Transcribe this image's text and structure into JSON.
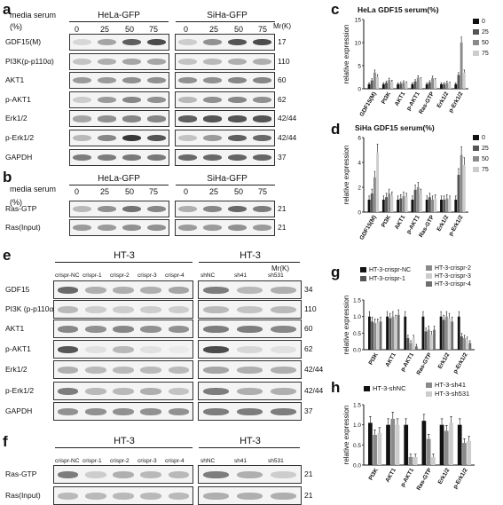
{
  "panel_letters": {
    "a": "a",
    "b": "b",
    "c": "c",
    "d": "d",
    "e": "e",
    "f": "f",
    "g": "g",
    "h": "h"
  },
  "common": {
    "media_serum": "media serum",
    "pct": "(%)",
    "mr": "Mr(K)"
  },
  "panel_a": {
    "groups": [
      "HeLa-GFP",
      "SiHa-GFP"
    ],
    "conc": [
      "0",
      "25",
      "50",
      "75"
    ],
    "rows": [
      {
        "label": "GDF15(M)",
        "mw": "17"
      },
      {
        "label": "PI3K(p-p110α)",
        "mw": "110"
      },
      {
        "label": "AKT1",
        "mw": "60"
      },
      {
        "label": "p-AKT1",
        "mw": "62"
      },
      {
        "label": "Erk1/2",
        "mw": "42/44"
      },
      {
        "label": "p-Erk1/2",
        "mw": "42/44"
      },
      {
        "label": "GAPDH",
        "mw": "37"
      }
    ]
  },
  "panel_b": {
    "groups": [
      "HeLa-GFP",
      "SiHa-GFP"
    ],
    "conc": [
      "0",
      "25",
      "50",
      "75"
    ],
    "rows": [
      {
        "label": "Ras-GTP",
        "mw": "21"
      },
      {
        "label": "Ras(Input)",
        "mw": "21"
      }
    ]
  },
  "panel_e": {
    "group_left": "HT-3",
    "group_right": "HT-3",
    "lanes_left": [
      "crispr-NC",
      "crispr-1",
      "crispr-2",
      "crispr-3",
      "crispr-4"
    ],
    "lanes_right": [
      "shNC",
      "sh41",
      "sh531"
    ],
    "rows": [
      {
        "label": "GDF15",
        "mw": "34"
      },
      {
        "label": "PI3K (p-p110α)",
        "mw": "110"
      },
      {
        "label": "AKT1",
        "mw": "60"
      },
      {
        "label": "p-AKT1",
        "mw": "62"
      },
      {
        "label": "Erk1/2",
        "mw": "42/44"
      },
      {
        "label": "p-Erk1/2",
        "mw": "42/44"
      },
      {
        "label": "GAPDH",
        "mw": "37"
      }
    ]
  },
  "panel_f": {
    "group_left": "HT-3",
    "group_right": "HT-3",
    "lanes_left": [
      "crispr-NC",
      "crispr-1",
      "crispr-2",
      "crispr-3",
      "crispr-4"
    ],
    "lanes_right": [
      "shNC",
      "sh41",
      "sh531"
    ],
    "rows": [
      {
        "label": "Ras-GTP",
        "mw": "21"
      },
      {
        "label": "Ras(Input)",
        "mw": "21"
      }
    ]
  },
  "chart_data": [
    {
      "id": "c",
      "type": "bar",
      "title": "HeLa  GDF15 serum(%)",
      "ylabel": "relative expression",
      "categories": [
        "GDF15(M)",
        "PI3K",
        "AKT1",
        "p-AKT1",
        "Ras-GTP",
        "Erk1/2",
        "p-Erk1/2"
      ],
      "ylim": [
        0,
        15
      ],
      "yticks": [
        0,
        5,
        10,
        15
      ],
      "legend": "right",
      "colors": [
        "#111111",
        "#555555",
        "#8a8a8a",
        "#cccccc"
      ],
      "series": [
        {
          "name": "0",
          "values": [
            1.0,
            1.0,
            1.0,
            1.0,
            1.0,
            1.0,
            1.0
          ]
        },
        {
          "name": "25",
          "values": [
            1.8,
            1.3,
            1.1,
            1.6,
            1.4,
            1.0,
            3.0
          ]
        },
        {
          "name": "50",
          "values": [
            3.5,
            1.9,
            1.4,
            2.4,
            2.3,
            1.3,
            10.0
          ]
        },
        {
          "name": "75",
          "values": [
            2.6,
            1.5,
            1.2,
            2.0,
            1.8,
            1.1,
            3.5
          ]
        }
      ]
    },
    {
      "id": "d",
      "type": "bar",
      "title": "SiHa  GDF15 serum(%)",
      "ylabel": "relative expression",
      "categories": [
        "GDF15(M)",
        "PI3K",
        "AKT1",
        "p-AKT1",
        "Ras-GTP",
        "Erk1/2",
        "p-Erk1/2"
      ],
      "ylim": [
        0,
        6
      ],
      "yticks": [
        0,
        2,
        4,
        6
      ],
      "legend": "right",
      "colors": [
        "#111111",
        "#555555",
        "#8a8a8a",
        "#cccccc"
      ],
      "series": [
        {
          "name": "0",
          "values": [
            1.0,
            1.0,
            1.0,
            1.0,
            1.0,
            1.0,
            1.0
          ]
        },
        {
          "name": "25",
          "values": [
            1.5,
            1.2,
            1.1,
            1.8,
            1.2,
            1.0,
            3.0
          ]
        },
        {
          "name": "50",
          "values": [
            2.8,
            1.5,
            1.3,
            2.0,
            1.0,
            1.1,
            4.6
          ]
        },
        {
          "name": "75",
          "values": [
            4.8,
            1.3,
            1.2,
            1.5,
            1.1,
            1.0,
            3.8
          ]
        }
      ]
    },
    {
      "id": "g",
      "type": "bar",
      "title": "",
      "ylabel": "relative expression",
      "categories": [
        "PI3K",
        "AKT1",
        "p-AKT1",
        "Ras-GTP",
        "Erk1/2",
        "p-Erk1/2"
      ],
      "ylim": [
        0,
        1.5
      ],
      "yticks": [
        0.0,
        0.5,
        1.0,
        1.5
      ],
      "legend": "top",
      "colors": [
        "#111111",
        "#555555",
        "#8a8a8a",
        "#cccccc",
        "#6e6e6e"
      ],
      "series": [
        {
          "name": "HT-3-crispr-NC",
          "values": [
            1.0,
            1.0,
            1.0,
            1.0,
            1.0,
            1.0
          ]
        },
        {
          "name": "HT-3-crispr-1",
          "values": [
            0.85,
            0.95,
            0.35,
            0.55,
            0.9,
            0.4
          ]
        },
        {
          "name": "HT-3-crispr-2",
          "values": [
            0.8,
            1.0,
            0.2,
            0.6,
            1.0,
            0.35
          ]
        },
        {
          "name": "HT-3-crispr-3",
          "values": [
            0.8,
            0.9,
            0.35,
            0.45,
            0.95,
            0.3
          ]
        },
        {
          "name": "HT-3-crispr-4",
          "values": [
            0.85,
            1.05,
            0.1,
            0.6,
            0.85,
            0.2
          ]
        }
      ]
    },
    {
      "id": "h",
      "type": "bar",
      "title": "",
      "ylabel": "relative expression",
      "categories": [
        "PI3K",
        "AKT1",
        "p-AKT1",
        "Ras-GTP",
        "Erk1/2",
        "p-Erk1/2"
      ],
      "ylim": [
        0,
        1.5
      ],
      "yticks": [
        0.0,
        0.5,
        1.0,
        1.5
      ],
      "legend": "top",
      "colors": [
        "#111111",
        "#8a8a8a",
        "#cccccc"
      ],
      "series": [
        {
          "name": "HT-3-shNC",
          "values": [
            1.05,
            1.0,
            1.0,
            1.1,
            1.0,
            1.0
          ]
        },
        {
          "name": "HT-3-sh41",
          "values": [
            0.75,
            1.15,
            0.2,
            0.65,
            0.85,
            0.55
          ]
        },
        {
          "name": "HT-3-sh531",
          "values": [
            0.8,
            1.0,
            0.2,
            0.2,
            1.05,
            0.6
          ]
        }
      ]
    }
  ]
}
